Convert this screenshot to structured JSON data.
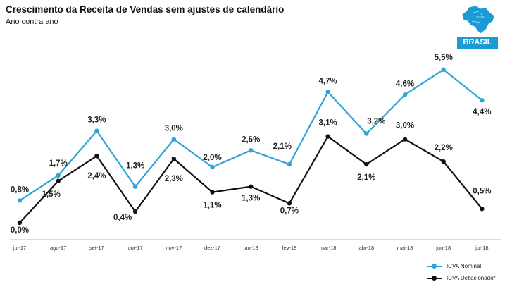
{
  "header": {
    "title": "Crescimento da Receita de Vendas sem ajustes de calendário",
    "subtitle": "Ano contra ano",
    "region_badge": "BRASIL",
    "map_icon": "brazil-map-icon"
  },
  "colors": {
    "nominal": "#2ea3d6",
    "deflated": "#111111",
    "badge": "#1a9ad6"
  },
  "chart_data": {
    "type": "line",
    "title": "Crescimento da Receita de Vendas sem ajustes de calendário",
    "subtitle": "Ano contra ano",
    "categories": [
      "jul-17",
      "ago-17",
      "set-17",
      "out-17",
      "nov-17",
      "dez-17",
      "jan-18",
      "fev-18",
      "mar-18",
      "abr-18",
      "mai-18",
      "jun-18",
      "jul-18"
    ],
    "series": [
      {
        "name": "ICVA Nominal",
        "values": [
          0.8,
          1.7,
          3.3,
          1.3,
          3.0,
          2.0,
          2.6,
          2.1,
          4.7,
          3.2,
          4.6,
          5.5,
          4.4
        ],
        "labels": [
          "0,8%",
          "1,7%",
          "3,3%",
          "1,3%",
          "3,0%",
          "2,0%",
          "2,6%",
          "2,1%",
          "4,7%",
          "3,2%",
          "4,6%",
          "5,5%",
          "4,4%"
        ]
      },
      {
        "name": "ICVA Deflacionado*",
        "values": [
          0.0,
          1.5,
          2.4,
          0.4,
          2.3,
          1.1,
          1.3,
          0.7,
          3.1,
          2.1,
          3.0,
          2.2,
          0.5
        ],
        "labels": [
          "0,0%",
          "1,5%",
          "2,4%",
          "0,4%",
          "2,3%",
          "1,1%",
          "1,3%",
          "0,7%",
          "3,1%",
          "2,1%",
          "3,0%",
          "2,2%",
          "0,5%"
        ]
      }
    ],
    "ylim": [
      0,
      5.5
    ],
    "grid": false,
    "legend_position": "bottom-right"
  }
}
